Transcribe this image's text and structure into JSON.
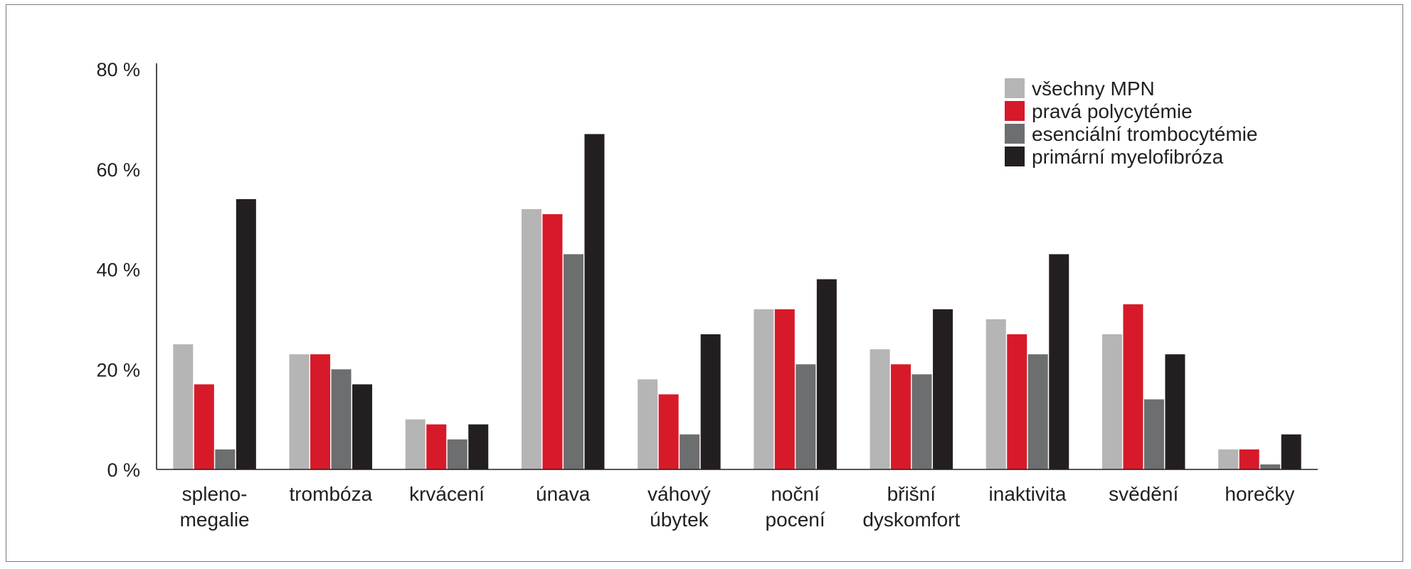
{
  "chart_data": {
    "type": "bar",
    "title": "",
    "xlabel": "",
    "ylabel": "",
    "ylim": [
      0,
      80
    ],
    "y_ticks": [
      "0 %",
      "20 %",
      "40 %",
      "60 %",
      "80 %"
    ],
    "grid": false,
    "legend_position": "top-right",
    "categories": [
      [
        "spleno-",
        "megalie"
      ],
      [
        "trombóza"
      ],
      [
        "krvácení"
      ],
      [
        "únava"
      ],
      [
        "váhový",
        "úbytek"
      ],
      [
        "noční",
        "pocení"
      ],
      [
        "břišní",
        "dyskomfort"
      ],
      [
        "inaktivita"
      ],
      [
        "svědění"
      ],
      [
        "horečky"
      ]
    ],
    "series": [
      {
        "name": "všechny MPN",
        "color": "#b5b5b6",
        "values": [
          25,
          23,
          10,
          52,
          18,
          32,
          24,
          30,
          27,
          4
        ]
      },
      {
        "name": "pravá polycytémie",
        "color": "#d71a2a",
        "values": [
          17,
          23,
          9,
          51,
          15,
          32,
          21,
          27,
          33,
          4
        ]
      },
      {
        "name": "esenciální trombocytémie",
        "color": "#6d6e70",
        "values": [
          4,
          20,
          6,
          43,
          7,
          21,
          19,
          23,
          14,
          1
        ]
      },
      {
        "name": "primární myelofibróza",
        "color": "#231f20",
        "values": [
          54,
          17,
          9,
          67,
          27,
          38,
          32,
          43,
          23,
          7
        ]
      }
    ]
  }
}
